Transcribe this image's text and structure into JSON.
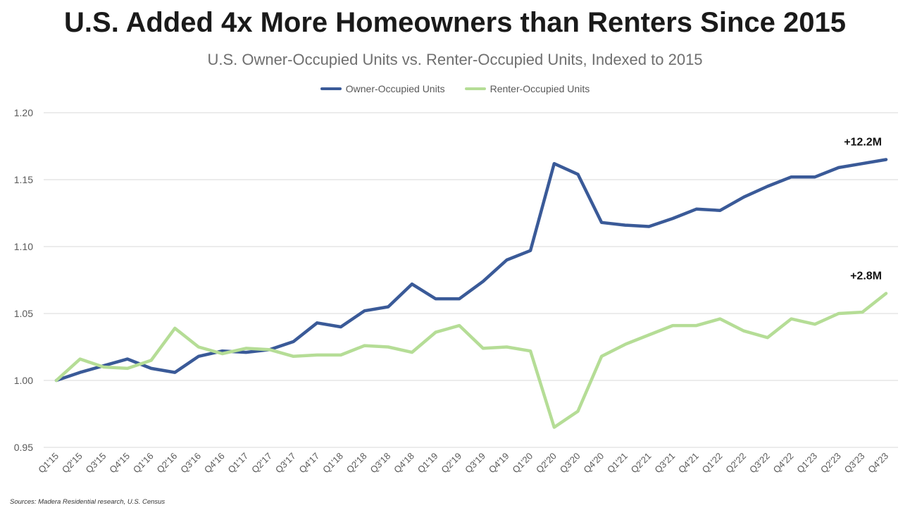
{
  "header": {
    "title": "U.S. Added 4x More Homeowners than Renters Since 2015",
    "subtitle": "U.S. Owner-Occupied Units vs. Renter-Occupied Units, Indexed to 2015"
  },
  "footer": {
    "source": "Sources: Madera Residential research, U.S. Census"
  },
  "chart_data": {
    "type": "line",
    "title": "U.S. Added 4x More Homeowners than Renters Since 2015",
    "subtitle": "U.S. Owner-Occupied Units vs. Renter-Occupied Units, Indexed to 2015",
    "xlabel": "",
    "ylabel": "",
    "ylim": [
      0.95,
      1.2
    ],
    "yticks": [
      "0.95",
      "1.00",
      "1.05",
      "1.10",
      "1.15",
      "1.20"
    ],
    "grid": true,
    "legend": "top-center",
    "categories": [
      "Q1'15",
      "Q2'15",
      "Q3'15",
      "Q4'15",
      "Q1'16",
      "Q2'16",
      "Q3'16",
      "Q4'16",
      "Q1'17",
      "Q2'17",
      "Q3'17",
      "Q4'17",
      "Q1'18",
      "Q2'18",
      "Q3'18",
      "Q4'18",
      "Q1'19",
      "Q2'19",
      "Q3'19",
      "Q4'19",
      "Q1'20",
      "Q2'20",
      "Q3'20",
      "Q4'20",
      "Q1'21",
      "Q2'21",
      "Q3'21",
      "Q4'21",
      "Q1'22",
      "Q2'22",
      "Q3'22",
      "Q4'22",
      "Q1'23",
      "Q2'23",
      "Q3'23",
      "Q4'23"
    ],
    "series": [
      {
        "name": "Owner-Occupied Units",
        "color": "#3a5a98",
        "end_label": "+12.2M",
        "values": [
          1.0,
          1.006,
          1.011,
          1.016,
          1.009,
          1.006,
          1.018,
          1.022,
          1.021,
          1.023,
          1.029,
          1.043,
          1.04,
          1.052,
          1.055,
          1.072,
          1.061,
          1.061,
          1.074,
          1.09,
          1.097,
          1.162,
          1.154,
          1.118,
          1.116,
          1.115,
          1.121,
          1.128,
          1.127,
          1.137,
          1.145,
          1.152,
          1.152,
          1.159,
          1.162,
          1.165
        ]
      },
      {
        "name": "Renter-Occupied Units",
        "color": "#b5dd96",
        "end_label": "+2.8M",
        "values": [
          1.0,
          1.016,
          1.01,
          1.009,
          1.015,
          1.039,
          1.025,
          1.02,
          1.024,
          1.023,
          1.018,
          1.019,
          1.019,
          1.026,
          1.025,
          1.021,
          1.036,
          1.041,
          1.024,
          1.025,
          1.022,
          0.965,
          0.977,
          1.018,
          1.027,
          1.034,
          1.041,
          1.041,
          1.046,
          1.037,
          1.032,
          1.046,
          1.042,
          1.05,
          1.051,
          1.065
        ]
      }
    ]
  }
}
